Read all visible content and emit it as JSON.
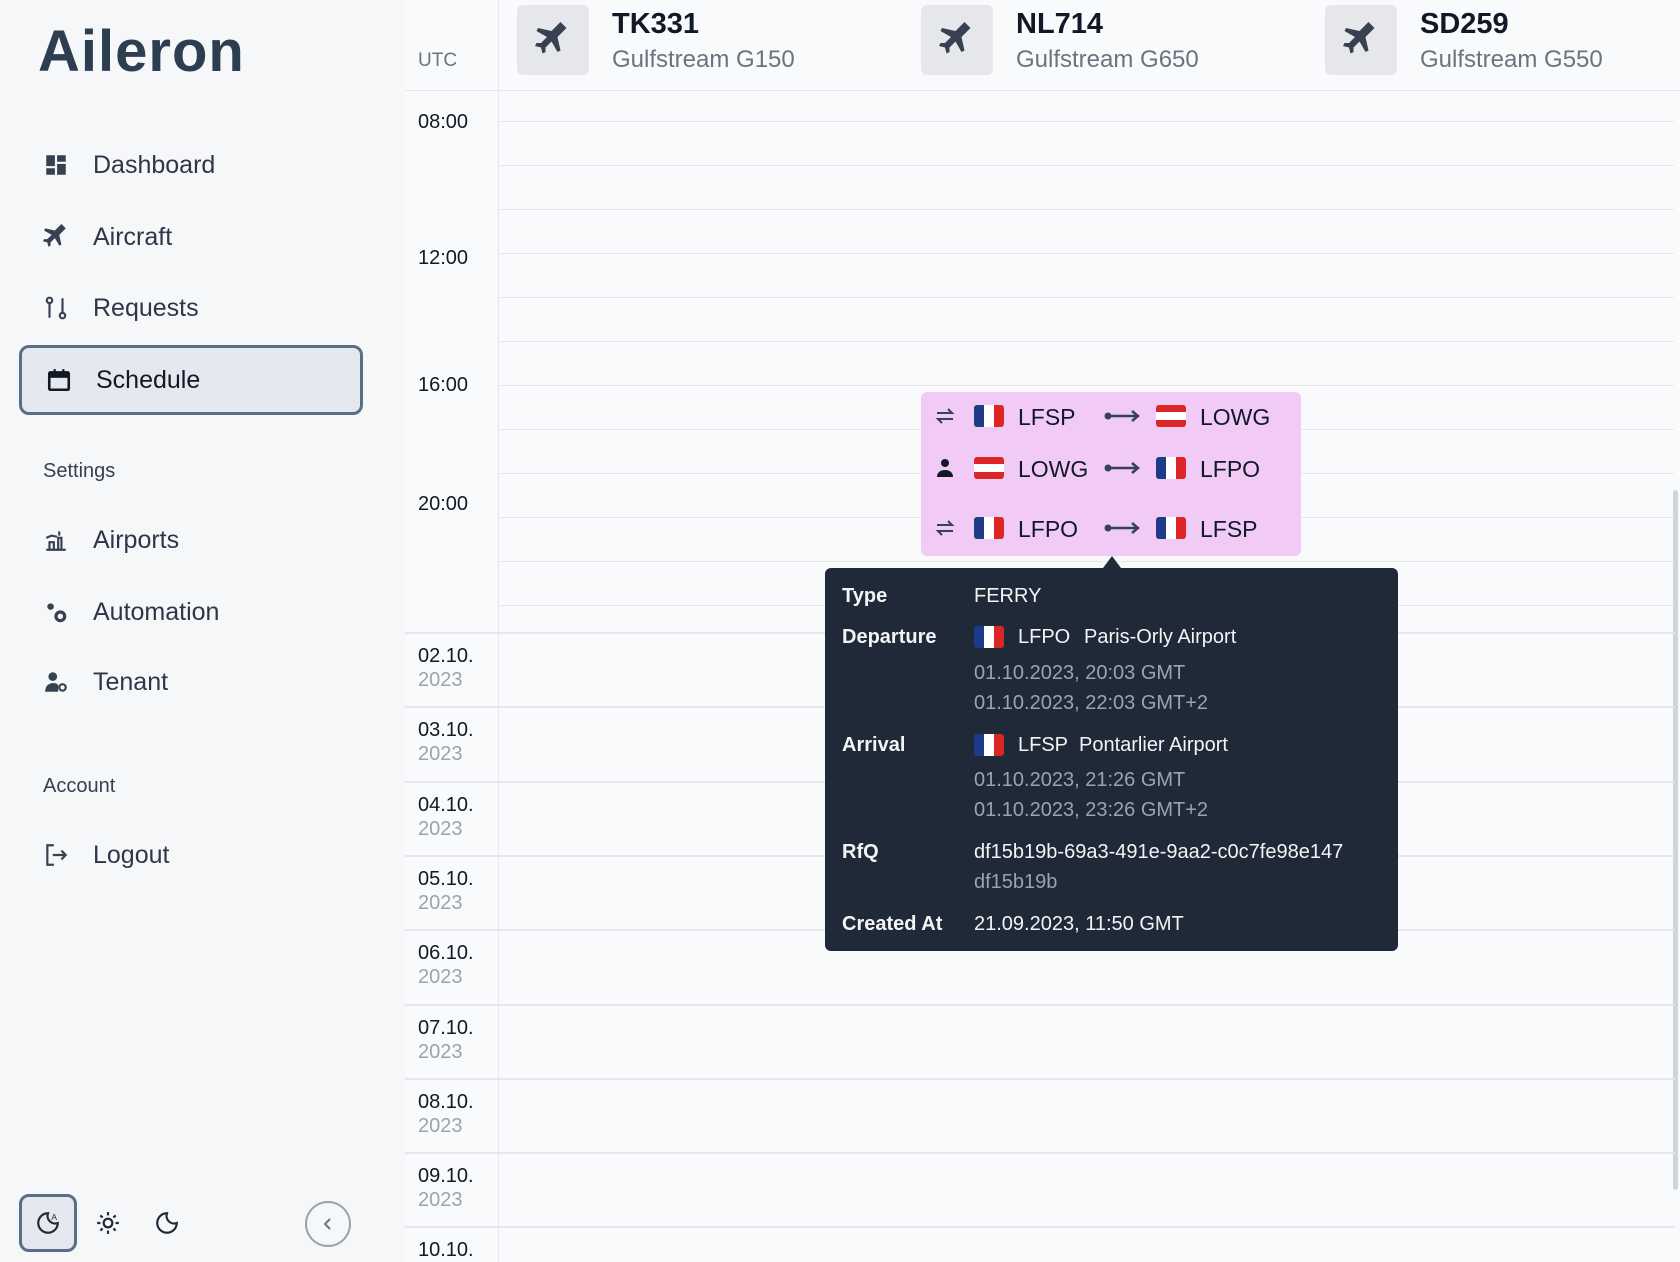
{
  "brand": "Aileron",
  "nav": [
    "Dashboard",
    "Aircraft",
    "Requests",
    "Schedule"
  ],
  "settings": {
    "title": "Settings",
    "items": [
      "Airports",
      "Automation",
      "Tenant"
    ]
  },
  "account": {
    "title": "Account",
    "items": [
      "Logout"
    ]
  },
  "schedule": {
    "timezone": "UTC",
    "aircraft": [
      {
        "reg": "TK331",
        "model": "Gulfstream G150"
      },
      {
        "reg": "NL714",
        "model": "Gulfstream G650"
      },
      {
        "reg": "SD259",
        "model": "Gulfstream G550"
      }
    ],
    "times": [
      "08:00",
      "12:00",
      "16:00",
      "20:00"
    ],
    "days": [
      {
        "date": "02.10.",
        "year": "2023"
      },
      {
        "date": "03.10.",
        "year": "2023"
      },
      {
        "date": "04.10.",
        "year": "2023"
      },
      {
        "date": "05.10.",
        "year": "2023"
      },
      {
        "date": "06.10.",
        "year": "2023"
      },
      {
        "date": "07.10.",
        "year": "2023"
      },
      {
        "date": "08.10.",
        "year": "2023"
      },
      {
        "date": "09.10.",
        "year": "2023"
      },
      {
        "date": "10.10."
      }
    ]
  },
  "legs": [
    {
      "from": "LFSP",
      "to": "LOWG"
    },
    {
      "from": "LOWG",
      "to": "LFPO"
    },
    {
      "from": "LFPO",
      "to": "LFSP"
    }
  ],
  "tooltip": {
    "type": {
      "label": "Type",
      "value": "FERRY"
    },
    "departure": {
      "label": "Departure",
      "code": "LFPO",
      "name": "Paris-Orly Airport",
      "time_utc": "01.10.2023, 20:03 GMT",
      "time_local": "01.10.2023, 22:03 GMT+2"
    },
    "arrival": {
      "label": "Arrival",
      "code": "LFSP",
      "name": "Pontarlier Airport",
      "time_utc": "01.10.2023, 21:26 GMT",
      "time_local": "01.10.2023, 23:26 GMT+2"
    },
    "rfq": {
      "label": "RfQ",
      "id": "df15b19b-69a3-491e-9aa2-c0c7fe98e147",
      "short": "df15b19b"
    },
    "created": {
      "label": "Created At",
      "value": "21.09.2023, 11:50 GMT"
    }
  }
}
